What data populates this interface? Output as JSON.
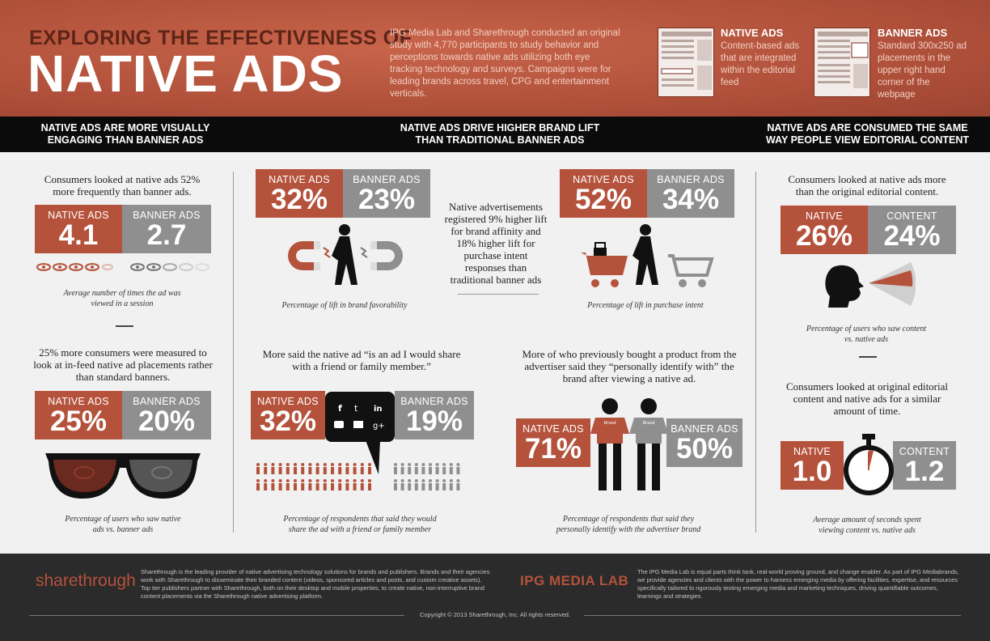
{
  "header": {
    "title_small": "EXPLORING THE EFFECTIVENESS OF",
    "title_big": "NATIVE ADS",
    "intro": "IPG Media Lab and Sharethrough conducted an original study with 4,770 participants to study behavior and perceptions towards native ads utilizing both eye tracking technology and surveys. Campaigns were for leading brands across travel, CPG and entertainment verticals.",
    "native_def": {
      "title": "NATIVE ADS",
      "text": "Content-based ads that are integrated within the editorial feed"
    },
    "banner_def": {
      "title": "BANNER ADS",
      "text": "Standard 300x250 ad placements in the upper right hand corner of the webpage"
    }
  },
  "band": {
    "col1": "NATIVE ADS ARE MORE VISUALLY ENGAGING THAN BANNER ADS",
    "col2": "NATIVE ADS DRIVE HIGHER BRAND LIFT THAN TRADITIONAL BANNER ADS",
    "col3": "NATIVE ADS ARE CONSUMED THE SAME WAY PEOPLE VIEW EDITORIAL CONTENT"
  },
  "col1": {
    "lead1": "Consumers looked at native ads 52% more frequently than banner ads.",
    "views": {
      "native_label": "NATIVE ADS",
      "native_value": "4.1",
      "banner_label": "BANNER ADS",
      "banner_value": "2.7"
    },
    "caption1": "Average number of times the ad was viewed in a session",
    "lead2": "25% more consumers were measured to look at in-feed native ad placements rather than standard banners.",
    "looks": {
      "native_label": "NATIVE ADS",
      "native_value": "25%",
      "banner_label": "BANNER ADS",
      "banner_value": "20%"
    },
    "caption2": "Percentage of users who saw native ads vs. banner ads"
  },
  "col2": {
    "favor": {
      "native_label": "NATIVE ADS",
      "native_value": "32%",
      "banner_label": "BANNER ADS",
      "banner_value": "23%"
    },
    "favor_caption": "Percentage of lift in brand favorability",
    "middle_text": "Native advertisements registered 9% higher lift for brand affinity and 18% higher lift for purchase intent responses than traditional banner ads",
    "intent": {
      "native_label": "NATIVE ADS",
      "native_value": "52%",
      "banner_label": "BANNER ADS",
      "banner_value": "34%"
    },
    "intent_caption": "Percentage of lift in purchase intent",
    "share_lead": "More said the native ad “is an ad I would share with a friend or family member.”",
    "share": {
      "native_label": "NATIVE ADS",
      "native_value": "32%",
      "banner_label": "BANNER ADS",
      "banner_value": "19%"
    },
    "share_caption": "Percentage of respondents that said they would share the ad with a friend or family member",
    "identify_lead": "More of who previously bought a product from the advertiser said they “personally identify with” the brand after viewing a native ad.",
    "identify": {
      "native_label": "NATIVE ADS",
      "native_value": "71%",
      "banner_label": "BANNER ADS",
      "banner_value": "50%"
    },
    "identify_caption": "Percentage of respondents that said they personally identify with the advertiser brand",
    "shirt_label": "Brand"
  },
  "col3": {
    "lead1": "Consumers looked at native ads more than the original editorial content.",
    "saw": {
      "native_label": "NATIVE",
      "native_value": "26%",
      "content_label": "CONTENT",
      "content_value": "24%"
    },
    "caption1": "Percentage of users who saw content vs. native ads",
    "lead2": "Consumers looked at original editorial content and native ads for a similar amount of time.",
    "time": {
      "native_label": "NATIVE",
      "native_value": "1.0",
      "content_label": "CONTENT",
      "content_value": "1.2"
    },
    "caption2": "Average amount of seconds spent viewing content vs. native ads"
  },
  "footer": {
    "sharethrough_logo": "sharethrough",
    "sharethrough_text": "Sharethrough is the leading provider of native advertising technology solutions for brands and publishers. Brands and their agencies work with Sharethrough to disseminate their branded content (videos, sponsored articles and posts, and custom creative assets). Top tier publishers partner with Sharethrough, both on their desktop and mobile properties, to create native, non-interruptive brand content placements via the Sharethrough native advertising platform.",
    "ipg_logo": "IPG MEDIA LAB",
    "ipg_text": "The IPG Media Lab is equal parts think tank, real-world proving ground, and change enabler. As part of IPG Mediabrands, we provide agencies and clients with the power to harness emerging media by offering facilities, expertise, and resources specifically tailored to rigorously testing emerging media and marketing techniques, driving quantifiable outcomes, learnings and strategies.",
    "copyright": "Copyright © 2013 Sharethrough, Inc. All rights reserved."
  },
  "colors": {
    "accent": "#b5523c",
    "gray": "#8f8f8f",
    "dark": "#0b0b0b"
  }
}
